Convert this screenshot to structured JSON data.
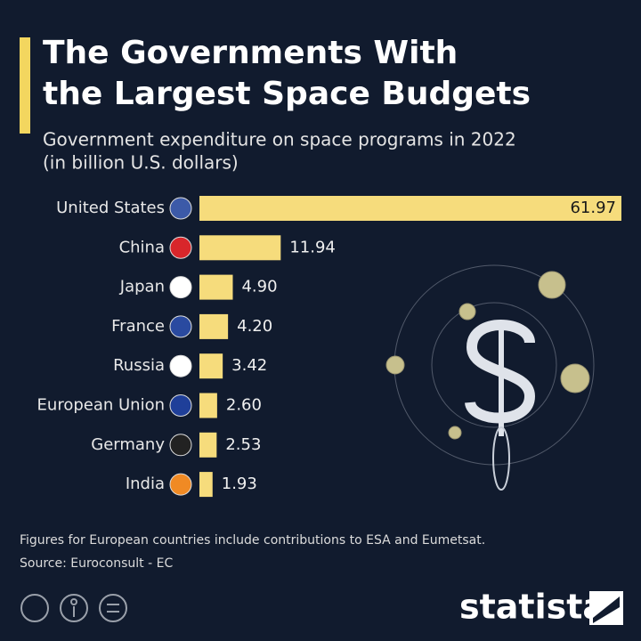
{
  "chart_data": {
    "type": "hbar",
    "title_lines": [
      "The Governments With",
      "the Largest Space Budgets"
    ],
    "subtitle_lines": [
      "Government expenditure on space programs in 2022",
      "(in billion U.S. dollars)"
    ],
    "categories": [
      "United States",
      "China",
      "Japan",
      "France",
      "Russia",
      "European Union",
      "Germany",
      "India"
    ],
    "values": [
      61.97,
      11.94,
      4.9,
      4.2,
      3.42,
      2.6,
      2.53,
      1.93
    ],
    "value_labels": [
      "61.97",
      "11.94",
      "4.90",
      "4.20",
      "3.42",
      "2.60",
      "2.53",
      "1.93"
    ],
    "color": "#f6dc7c",
    "note": "Figures for European countries include contributions to ESA and Eumetsat.",
    "source": "Source: Euroconsult - EC",
    "brand": "statista"
  }
}
